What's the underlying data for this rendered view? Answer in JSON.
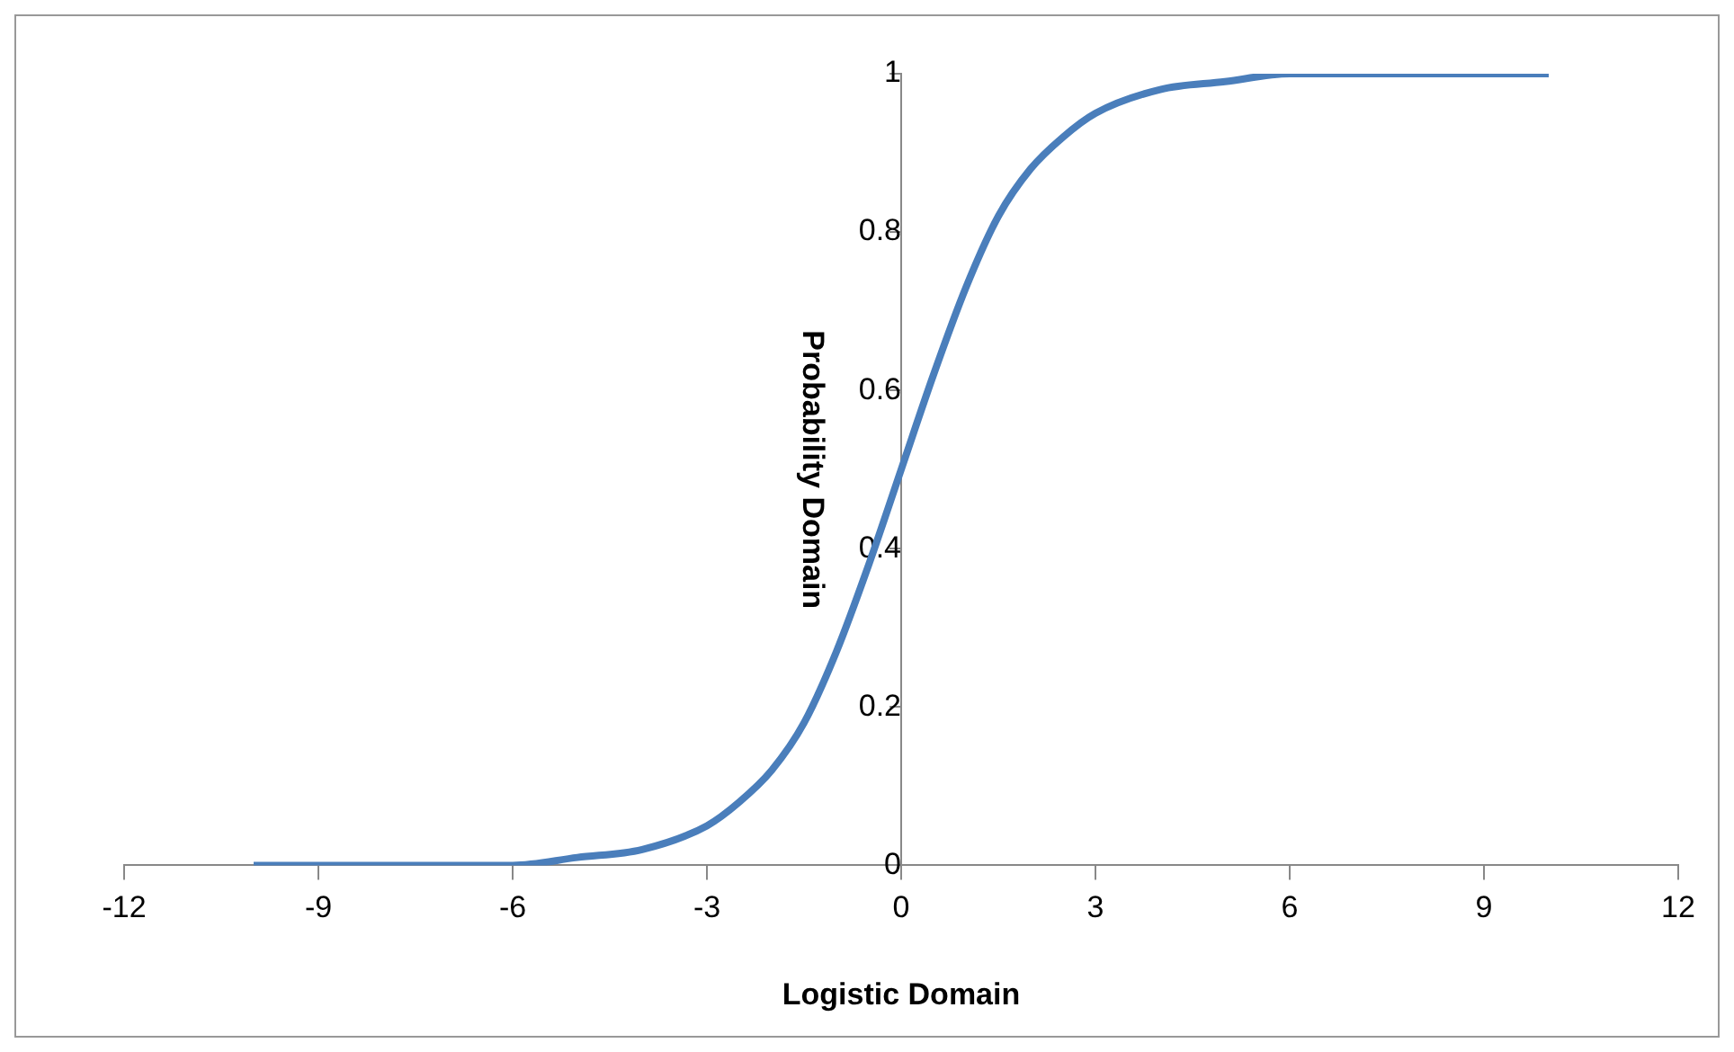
{
  "chart_data": {
    "type": "line",
    "xlabel": "Logistic Domain",
    "ylabel": "Probability Domain",
    "x": [
      -10,
      -8,
      -6,
      -5,
      -4,
      -3,
      -2.5,
      -2,
      -1.5,
      -1,
      -0.5,
      0,
      0.5,
      1,
      1.5,
      2,
      2.5,
      3,
      4,
      5,
      6,
      8,
      10
    ],
    "series": [
      {
        "color": "#4a7ebb",
        "values": [
          0,
          0,
          0,
          0.01,
          0.02,
          0.05,
          0.08,
          0.12,
          0.18,
          0.27,
          0.38,
          0.5,
          0.62,
          0.73,
          0.82,
          0.88,
          0.92,
          0.95,
          0.98,
          0.99,
          1,
          1,
          1
        ]
      }
    ],
    "xlim": [
      -12,
      12
    ],
    "xticks": [
      -12,
      -9,
      -6,
      -3,
      0,
      3,
      6,
      9,
      12
    ],
    "ylim": [
      0,
      1
    ],
    "yticks": [
      0,
      0.2,
      0.4,
      0.6,
      0.8,
      1
    ],
    "marker": "none",
    "line_style": "solid",
    "legend": false
  }
}
